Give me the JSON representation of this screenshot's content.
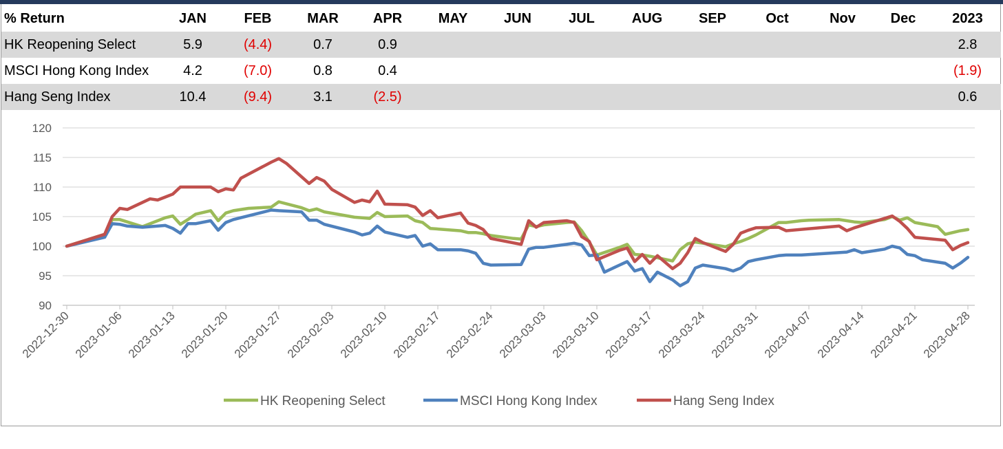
{
  "table": {
    "headers": [
      "% Return",
      "JAN",
      "FEB",
      "MAR",
      "APR",
      "MAY",
      "JUN",
      "JUL",
      "AUG",
      "SEP",
      "Oct",
      "Nov",
      "Dec",
      "2023"
    ],
    "rows": [
      {
        "name": "HK Reopening Select",
        "values": [
          "5.9",
          "(4.4)",
          "0.7",
          "0.9",
          "",
          "",
          "",
          "",
          "",
          "",
          "",
          "",
          "2.8"
        ]
      },
      {
        "name": "MSCI Hong Kong Index",
        "values": [
          "4.2",
          "(7.0)",
          "0.8",
          "0.4",
          "",
          "",
          "",
          "",
          "",
          "",
          "",
          "",
          "(1.9)"
        ]
      },
      {
        "name": "Hang Seng Index",
        "values": [
          "10.4",
          "(9.4)",
          "3.1",
          "(2.5)",
          "",
          "",
          "",
          "",
          "",
          "",
          "",
          "",
          "0.6"
        ]
      }
    ]
  },
  "colors": {
    "negative": "#e00000",
    "grid": "#d9d9d9",
    "axis": "#bfbfbf"
  },
  "chart_data": {
    "type": "line",
    "title": "",
    "xlabel": "",
    "ylabel": "",
    "ylim": [
      90,
      120
    ],
    "yticks": [
      90,
      95,
      100,
      105,
      110,
      115,
      120
    ],
    "xlim": [
      "2022-12-30",
      "2023-04-28"
    ],
    "xticks": [
      "2022-12-30",
      "2023-01-06",
      "2023-01-13",
      "2023-01-20",
      "2023-01-27",
      "2023-02-03",
      "2023-02-10",
      "2023-02-17",
      "2023-02-24",
      "2023-03-03",
      "2023-03-10",
      "2023-03-17",
      "2023-03-24",
      "2023-03-31",
      "2023-04-07",
      "2023-04-14",
      "2023-04-21",
      "2023-04-28"
    ],
    "grid": true,
    "legend": "bottom",
    "series": [
      {
        "name": "HK Reopening Select",
        "color": "#9bbb59",
        "points": [
          [
            "2022-12-30",
            100.0
          ],
          [
            "2023-01-04",
            102.0
          ],
          [
            "2023-01-05",
            104.5
          ],
          [
            "2023-01-06",
            104.5
          ],
          [
            "2023-01-09",
            103.3
          ],
          [
            "2023-01-12",
            104.8
          ],
          [
            "2023-01-13",
            105.1
          ],
          [
            "2023-01-14",
            103.7
          ],
          [
            "2023-01-15",
            104.5
          ],
          [
            "2023-01-16",
            105.4
          ],
          [
            "2023-01-18",
            106.0
          ],
          [
            "2023-01-19",
            104.3
          ],
          [
            "2023-01-20",
            105.6
          ],
          [
            "2023-01-21",
            106.0
          ],
          [
            "2023-01-23",
            106.4
          ],
          [
            "2023-01-26",
            106.6
          ],
          [
            "2023-01-27",
            107.5
          ],
          [
            "2023-01-30",
            106.5
          ],
          [
            "2023-01-31",
            106.0
          ],
          [
            "2023-02-01",
            106.3
          ],
          [
            "2023-02-02",
            105.8
          ],
          [
            "2023-02-06",
            104.9
          ],
          [
            "2023-02-07",
            104.8
          ],
          [
            "2023-02-08",
            104.7
          ],
          [
            "2023-02-09",
            105.7
          ],
          [
            "2023-02-10",
            105.0
          ],
          [
            "2023-02-13",
            105.1
          ],
          [
            "2023-02-14",
            104.3
          ],
          [
            "2023-02-15",
            104.0
          ],
          [
            "2023-02-16",
            103.0
          ],
          [
            "2023-02-20",
            102.6
          ],
          [
            "2023-02-21",
            102.3
          ],
          [
            "2023-02-22",
            102.3
          ],
          [
            "2023-02-23",
            102.1
          ],
          [
            "2023-02-24",
            101.8
          ],
          [
            "2023-02-27",
            101.3
          ],
          [
            "2023-02-28",
            101.2
          ],
          [
            "2023-03-01",
            103.6
          ],
          [
            "2023-03-02",
            103.3
          ],
          [
            "2023-03-03",
            103.6
          ],
          [
            "2023-03-06",
            104.0
          ],
          [
            "2023-03-07",
            104.1
          ],
          [
            "2023-03-08",
            102.6
          ],
          [
            "2023-03-09",
            100.7
          ],
          [
            "2023-03-10",
            98.5
          ],
          [
            "2023-03-13",
            99.8
          ],
          [
            "2023-03-14",
            100.3
          ],
          [
            "2023-03-15",
            98.6
          ],
          [
            "2023-03-16",
            98.5
          ],
          [
            "2023-03-17",
            98.3
          ],
          [
            "2023-03-20",
            97.5
          ],
          [
            "2023-03-21",
            99.4
          ],
          [
            "2023-03-22",
            100.4
          ],
          [
            "2023-03-23",
            100.7
          ],
          [
            "2023-03-24",
            100.5
          ],
          [
            "2023-03-27",
            99.9
          ],
          [
            "2023-03-28",
            100.4
          ],
          [
            "2023-03-29",
            100.8
          ],
          [
            "2023-03-30",
            101.3
          ],
          [
            "2023-03-31",
            101.9
          ],
          [
            "2023-04-03",
            104.0
          ],
          [
            "2023-04-04",
            104.0
          ],
          [
            "2023-04-06",
            104.3
          ],
          [
            "2023-04-07",
            104.4
          ],
          [
            "2023-04-11",
            104.5
          ],
          [
            "2023-04-12",
            104.3
          ],
          [
            "2023-04-13",
            104.1
          ],
          [
            "2023-04-14",
            104.0
          ],
          [
            "2023-04-17",
            104.5
          ],
          [
            "2023-04-18",
            105.0
          ],
          [
            "2023-04-19",
            104.4
          ],
          [
            "2023-04-20",
            104.8
          ],
          [
            "2023-04-21",
            104.0
          ],
          [
            "2023-04-24",
            103.3
          ],
          [
            "2023-04-25",
            102.0
          ],
          [
            "2023-04-26",
            102.3
          ],
          [
            "2023-04-27",
            102.6
          ],
          [
            "2023-04-28",
            102.8
          ]
        ]
      },
      {
        "name": "MSCI Hong Kong Index",
        "color": "#4f81bd",
        "points": [
          [
            "2022-12-30",
            100.0
          ],
          [
            "2023-01-04",
            101.5
          ],
          [
            "2023-01-05",
            103.8
          ],
          [
            "2023-01-06",
            103.7
          ],
          [
            "2023-01-07",
            103.4
          ],
          [
            "2023-01-09",
            103.2
          ],
          [
            "2023-01-12",
            103.5
          ],
          [
            "2023-01-13",
            103.0
          ],
          [
            "2023-01-14",
            102.2
          ],
          [
            "2023-01-15",
            103.8
          ],
          [
            "2023-01-16",
            103.8
          ],
          [
            "2023-01-18",
            104.3
          ],
          [
            "2023-01-19",
            102.7
          ],
          [
            "2023-01-20",
            104.0
          ],
          [
            "2023-01-21",
            104.5
          ],
          [
            "2023-01-26",
            106.1
          ],
          [
            "2023-01-27",
            106.0
          ],
          [
            "2023-01-30",
            105.8
          ],
          [
            "2023-01-31",
            104.4
          ],
          [
            "2023-02-01",
            104.4
          ],
          [
            "2023-02-02",
            103.7
          ],
          [
            "2023-02-06",
            102.4
          ],
          [
            "2023-02-07",
            101.9
          ],
          [
            "2023-02-08",
            102.2
          ],
          [
            "2023-02-09",
            103.4
          ],
          [
            "2023-02-10",
            102.4
          ],
          [
            "2023-02-13",
            101.5
          ],
          [
            "2023-02-14",
            101.8
          ],
          [
            "2023-02-15",
            100.0
          ],
          [
            "2023-02-16",
            100.4
          ],
          [
            "2023-02-17",
            99.4
          ],
          [
            "2023-02-20",
            99.4
          ],
          [
            "2023-02-21",
            99.2
          ],
          [
            "2023-02-22",
            98.8
          ],
          [
            "2023-02-23",
            97.1
          ],
          [
            "2023-02-24",
            96.8
          ],
          [
            "2023-02-28",
            96.9
          ],
          [
            "2023-03-01",
            99.5
          ],
          [
            "2023-03-02",
            99.8
          ],
          [
            "2023-03-03",
            99.8
          ],
          [
            "2023-03-06",
            100.3
          ],
          [
            "2023-03-07",
            100.5
          ],
          [
            "2023-03-08",
            100.2
          ],
          [
            "2023-03-09",
            98.4
          ],
          [
            "2023-03-10",
            98.5
          ],
          [
            "2023-03-11",
            95.6
          ],
          [
            "2023-03-13",
            96.8
          ],
          [
            "2023-03-14",
            97.4
          ],
          [
            "2023-03-15",
            95.8
          ],
          [
            "2023-03-16",
            96.2
          ],
          [
            "2023-03-17",
            94.0
          ],
          [
            "2023-03-18",
            95.6
          ],
          [
            "2023-03-20",
            94.3
          ],
          [
            "2023-03-21",
            93.3
          ],
          [
            "2023-03-22",
            94.0
          ],
          [
            "2023-03-23",
            96.3
          ],
          [
            "2023-03-24",
            96.8
          ],
          [
            "2023-03-27",
            96.2
          ],
          [
            "2023-03-28",
            95.8
          ],
          [
            "2023-03-29",
            96.3
          ],
          [
            "2023-03-30",
            97.4
          ],
          [
            "2023-03-31",
            97.7
          ],
          [
            "2023-04-03",
            98.4
          ],
          [
            "2023-04-04",
            98.5
          ],
          [
            "2023-04-06",
            98.5
          ],
          [
            "2023-04-12",
            99.0
          ],
          [
            "2023-04-13",
            99.4
          ],
          [
            "2023-04-14",
            98.9
          ],
          [
            "2023-04-17",
            99.5
          ],
          [
            "2023-04-18",
            100.0
          ],
          [
            "2023-04-19",
            99.7
          ],
          [
            "2023-04-20",
            98.6
          ],
          [
            "2023-04-21",
            98.4
          ],
          [
            "2023-04-22",
            97.7
          ],
          [
            "2023-04-25",
            97.1
          ],
          [
            "2023-04-26",
            96.3
          ],
          [
            "2023-04-27",
            97.1
          ],
          [
            "2023-04-28",
            98.1
          ]
        ]
      },
      {
        "name": "Hang Seng Index",
        "color": "#c0504d",
        "points": [
          [
            "2022-12-30",
            100.0
          ],
          [
            "2023-01-04",
            102.0
          ],
          [
            "2023-01-05",
            105.0
          ],
          [
            "2023-01-06",
            106.4
          ],
          [
            "2023-01-07",
            106.2
          ],
          [
            "2023-01-10",
            108.0
          ],
          [
            "2023-01-11",
            107.8
          ],
          [
            "2023-01-12",
            108.3
          ],
          [
            "2023-01-13",
            108.8
          ],
          [
            "2023-01-14",
            110.0
          ],
          [
            "2023-01-16",
            110.0
          ],
          [
            "2023-01-18",
            110.0
          ],
          [
            "2023-01-19",
            109.2
          ],
          [
            "2023-01-20",
            109.7
          ],
          [
            "2023-01-21",
            109.5
          ],
          [
            "2023-01-22",
            111.5
          ],
          [
            "2023-01-26",
            114.2
          ],
          [
            "2023-01-27",
            114.8
          ],
          [
            "2023-01-28",
            114.0
          ],
          [
            "2023-01-31",
            110.6
          ],
          [
            "2023-02-01",
            111.6
          ],
          [
            "2023-02-02",
            111.0
          ],
          [
            "2023-02-03",
            109.6
          ],
          [
            "2023-02-06",
            107.4
          ],
          [
            "2023-02-07",
            107.8
          ],
          [
            "2023-02-08",
            107.5
          ],
          [
            "2023-02-09",
            109.3
          ],
          [
            "2023-02-10",
            107.1
          ],
          [
            "2023-02-13",
            107.0
          ],
          [
            "2023-02-14",
            106.6
          ],
          [
            "2023-02-15",
            105.2
          ],
          [
            "2023-02-16",
            106.0
          ],
          [
            "2023-02-17",
            104.8
          ],
          [
            "2023-02-20",
            105.6
          ],
          [
            "2023-02-21",
            103.9
          ],
          [
            "2023-02-22",
            103.5
          ],
          [
            "2023-02-23",
            102.8
          ],
          [
            "2023-02-24",
            101.3
          ],
          [
            "2023-02-28",
            100.3
          ],
          [
            "2023-03-01",
            104.3
          ],
          [
            "2023-03-02",
            103.2
          ],
          [
            "2023-03-03",
            104.0
          ],
          [
            "2023-03-06",
            104.3
          ],
          [
            "2023-03-07",
            104.0
          ],
          [
            "2023-03-08",
            101.6
          ],
          [
            "2023-03-09",
            100.8
          ],
          [
            "2023-03-10",
            97.7
          ],
          [
            "2023-03-13",
            99.3
          ],
          [
            "2023-03-14",
            99.7
          ],
          [
            "2023-03-15",
            97.4
          ],
          [
            "2023-03-16",
            98.6
          ],
          [
            "2023-03-17",
            97.1
          ],
          [
            "2023-03-18",
            98.4
          ],
          [
            "2023-03-20",
            96.2
          ],
          [
            "2023-03-21",
            97.1
          ],
          [
            "2023-03-22",
            98.9
          ],
          [
            "2023-03-23",
            101.3
          ],
          [
            "2023-03-24",
            100.6
          ],
          [
            "2023-03-27",
            99.1
          ],
          [
            "2023-03-28",
            100.3
          ],
          [
            "2023-03-29",
            102.2
          ],
          [
            "2023-03-30",
            102.7
          ],
          [
            "2023-03-31",
            103.1
          ],
          [
            "2023-04-03",
            103.2
          ],
          [
            "2023-04-04",
            102.6
          ],
          [
            "2023-04-11",
            103.4
          ],
          [
            "2023-04-12",
            102.6
          ],
          [
            "2023-04-13",
            103.1
          ],
          [
            "2023-04-18",
            105.1
          ],
          [
            "2023-04-19",
            104.2
          ],
          [
            "2023-04-20",
            103.0
          ],
          [
            "2023-04-21",
            101.5
          ],
          [
            "2023-04-25",
            101.0
          ],
          [
            "2023-04-26",
            99.4
          ],
          [
            "2023-04-27",
            100.1
          ],
          [
            "2023-04-28",
            100.6
          ]
        ]
      }
    ]
  }
}
